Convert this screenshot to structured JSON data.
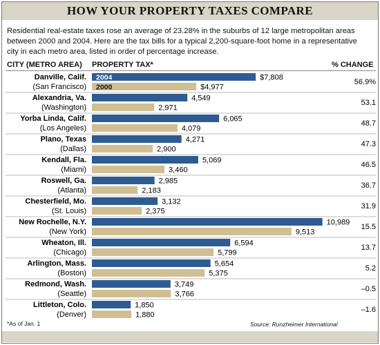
{
  "title": "HOW YOUR PROPERTY TAXES COMPARE",
  "intro": "Residential real-estate taxes rose an average of 23.28% in the suburbs of 12 large metropolitan areas between 2000 and 2004. Here are the tax bills for a typical 2,200-square-foot home in a representative city in each metro area, listed in order of percentage increase.",
  "headers": {
    "city": "CITY (METRO AREA)",
    "tax": "PROPERTY TAX*",
    "change": "% CHANGE"
  },
  "footnote": "*As of Jan. 1",
  "source": "Source: Runzheimer International",
  "colors": {
    "bar_2004": "#2e5b91",
    "bar_2000": "#cfbf93",
    "title_band": "#d9d5c8"
  },
  "chart_data": {
    "type": "bar",
    "orientation": "horizontal",
    "categories": [
      {
        "city": "Danville, Calif.",
        "metro": "(San Francisco)",
        "change": "56.9%"
      },
      {
        "city": "Alexandria, Va.",
        "metro": "(Washington)",
        "change": "53.1"
      },
      {
        "city": "Yorba Linda, Calif.",
        "metro": "(Los Angeles)",
        "change": "48.7"
      },
      {
        "city": "Plano, Texas",
        "metro": "(Dallas)",
        "change": "47.3"
      },
      {
        "city": "Kendall, Fla.",
        "metro": "(Miami)",
        "change": "46.5"
      },
      {
        "city": "Roswell, Ga.",
        "metro": "(Atlanta)",
        "change": "36.7"
      },
      {
        "city": "Chesterfield, Mo.",
        "metro": "(St. Louis)",
        "change": "31.9"
      },
      {
        "city": "New Rochelle, N.Y.",
        "metro": "(New York)",
        "change": "15.5"
      },
      {
        "city": "Wheaton, Ill.",
        "metro": "(Chicago)",
        "change": "13.7"
      },
      {
        "city": "Arlington, Mass.",
        "metro": "(Boston)",
        "change": "5.2"
      },
      {
        "city": "Redmond, Wash.",
        "metro": "(Seattle)",
        "change": "–0.5"
      },
      {
        "city": "Littleton, Colo.",
        "metro": "(Denver)",
        "change": "–1.6"
      }
    ],
    "series": [
      {
        "name": "2004",
        "values": [
          7808,
          4549,
          6065,
          4271,
          5069,
          2985,
          3132,
          10989,
          6594,
          5654,
          3749,
          1850
        ],
        "labels": [
          "$7,808",
          "4,549",
          "6,065",
          "4,271",
          "5,069",
          "2,985",
          "3,132",
          "10,989",
          "6,594",
          "5,654",
          "3,749",
          "1,850"
        ]
      },
      {
        "name": "2000",
        "values": [
          4977,
          2971,
          4079,
          2900,
          3460,
          2183,
          2375,
          9513,
          5799,
          5375,
          3766,
          1880
        ],
        "labels": [
          "$4,977",
          "2,971",
          "4,079",
          "2,900",
          "3,460",
          "2,183",
          "2,375",
          "9,513",
          "5,799",
          "5,375",
          "3,766",
          "1,880"
        ]
      }
    ]
  }
}
